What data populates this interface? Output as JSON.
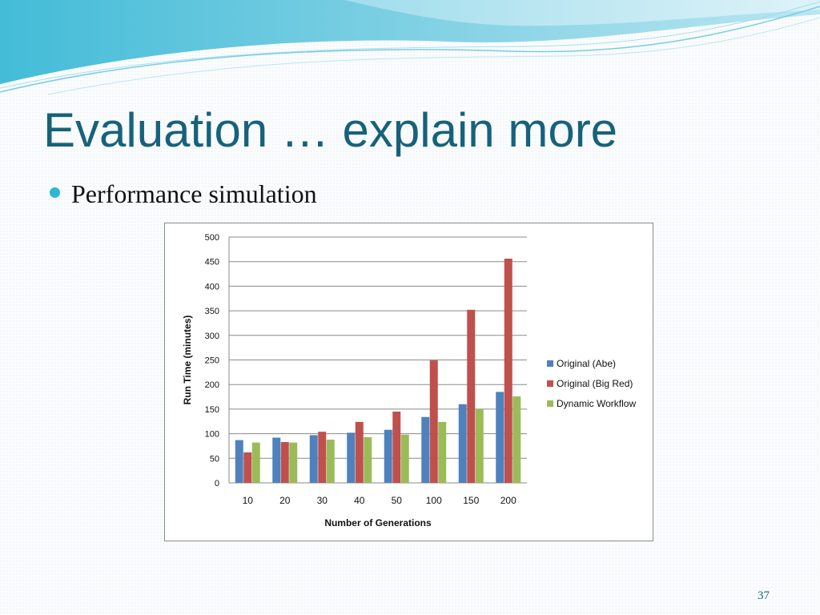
{
  "slide": {
    "title": "Evaluation … explain more",
    "bullets": [
      {
        "text": "Performance simulation"
      }
    ],
    "page_number": "37"
  },
  "colors": {
    "title": "#17627a",
    "bullet": "#2cb8d2",
    "banner_dark": "#3fb8d4",
    "banner_light": "#bfe9f2"
  },
  "chart_data": {
    "type": "bar",
    "title": "",
    "xlabel": "Number of Generations",
    "ylabel": "Run Time (minutes)",
    "categories": [
      "10",
      "20",
      "30",
      "40",
      "50",
      "100",
      "150",
      "200"
    ],
    "ylim": [
      0,
      500
    ],
    "yticks": [
      0,
      50,
      100,
      150,
      200,
      250,
      300,
      350,
      400,
      450,
      500
    ],
    "grid": true,
    "legend_position": "right",
    "series": [
      {
        "name": "Original (Abe)",
        "color": "#4f81bd",
        "values": [
          87,
          92,
          97,
          102,
          108,
          134,
          160,
          185
        ]
      },
      {
        "name": "Original (Big Red)",
        "color": "#c0504d",
        "values": [
          62,
          83,
          104,
          124,
          145,
          249,
          352,
          456
        ]
      },
      {
        "name": "Dynamic Workflow",
        "color": "#9bbb59",
        "values": [
          82,
          82,
          88,
          93,
          98,
          124,
          150,
          176
        ]
      }
    ]
  }
}
